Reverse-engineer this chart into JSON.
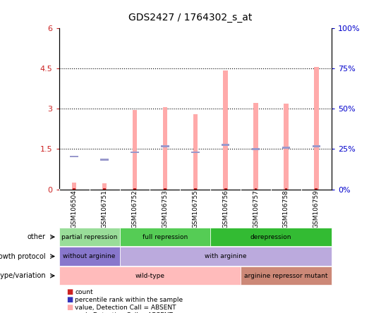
{
  "title": "GDS2427 / 1764302_s_at",
  "samples": [
    "GSM106504",
    "GSM106751",
    "GSM106752",
    "GSM106753",
    "GSM106755",
    "GSM106756",
    "GSM106757",
    "GSM106758",
    "GSM106759"
  ],
  "pink_bar_heights": [
    0.25,
    0.22,
    2.96,
    3.07,
    2.8,
    4.42,
    3.22,
    3.18,
    4.56
  ],
  "blue_marker_pos": [
    1.22,
    1.1,
    1.38,
    1.6,
    1.38,
    1.65,
    1.5,
    1.55,
    1.6
  ],
  "red_bar_heights": [
    0.04,
    0.04,
    0.04,
    0.04,
    0.04,
    0.04,
    0.04,
    0.04,
    0.04
  ],
  "ylim_left": [
    0,
    6
  ],
  "ylim_right": [
    0,
    100
  ],
  "yticks_left": [
    0,
    1.5,
    3.0,
    4.5,
    6.0
  ],
  "yticks_right": [
    0,
    25,
    50,
    75,
    100
  ],
  "ytick_labels_left": [
    "0",
    "1.5",
    "3",
    "4.5",
    "6"
  ],
  "ytick_labels_right": [
    "0%",
    "25%",
    "50%",
    "75%",
    "100%"
  ],
  "dotted_lines": [
    1.5,
    3.0,
    4.5
  ],
  "annotation_rows": [
    {
      "label": "other",
      "segments": [
        {
          "text": "partial repression",
          "start": 0,
          "end": 2,
          "color": "#99dd99"
        },
        {
          "text": "full repression",
          "start": 2,
          "end": 5,
          "color": "#55cc55"
        },
        {
          "text": "derepression",
          "start": 5,
          "end": 9,
          "color": "#33bb33"
        }
      ]
    },
    {
      "label": "growth protocol",
      "segments": [
        {
          "text": "without arginine",
          "start": 0,
          "end": 2,
          "color": "#8877cc"
        },
        {
          "text": "with arginine",
          "start": 2,
          "end": 9,
          "color": "#bbaadd"
        }
      ]
    },
    {
      "label": "genotype/variation",
      "segments": [
        {
          "text": "wild-type",
          "start": 0,
          "end": 6,
          "color": "#ffbbbb"
        },
        {
          "text": "arginine repressor mutant",
          "start": 6,
          "end": 9,
          "color": "#cc8877"
        }
      ]
    }
  ],
  "legend_items": [
    {
      "color": "#cc2222",
      "label": "count"
    },
    {
      "color": "#3333bb",
      "label": "percentile rank within the sample"
    },
    {
      "color": "#ffaaaa",
      "label": "value, Detection Call = ABSENT"
    },
    {
      "color": "#bbaadd",
      "label": "rank, Detection Call = ABSENT"
    }
  ],
  "pink_bar_color": "#ffaaaa",
  "blue_marker_color": "#9999cc",
  "red_bar_color": "#cc2222",
  "bg_color": "#ffffff",
  "tick_label_color_left": "#cc2222",
  "tick_label_color_right": "#0000cc",
  "xtick_bg_color": "#c8c8c8",
  "bar_width": 0.15
}
